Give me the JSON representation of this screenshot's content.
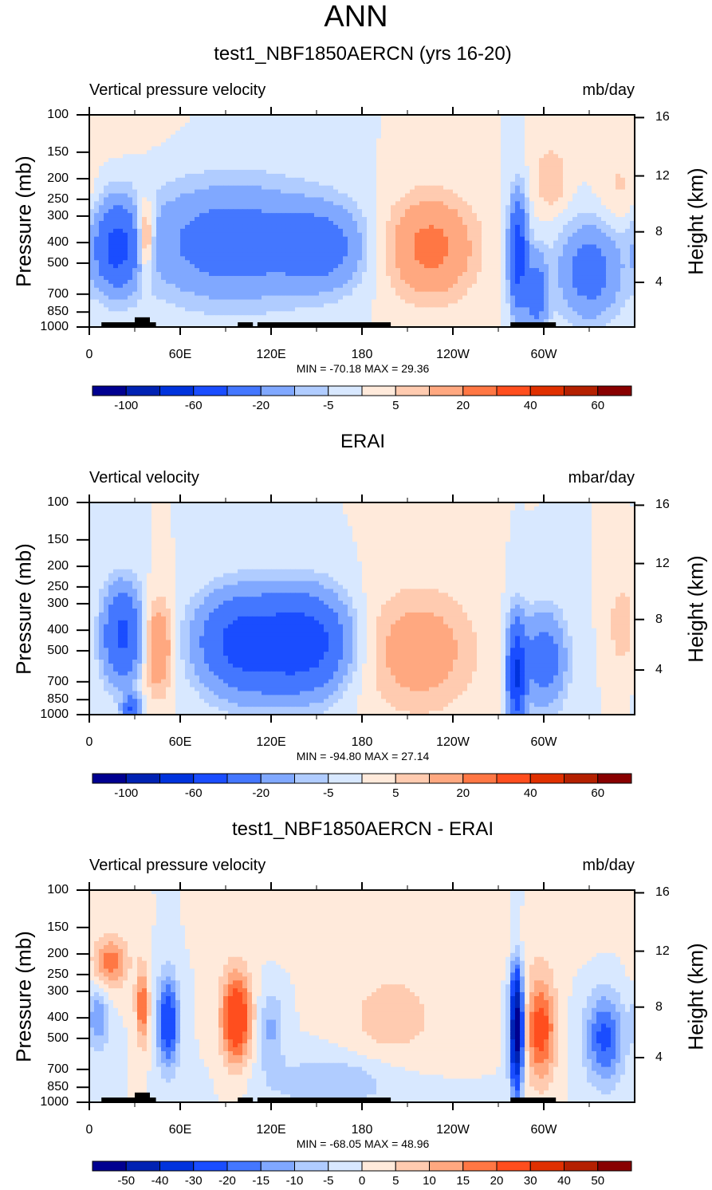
{
  "main_title": "ANN",
  "chart_data": [
    {
      "type": "heatmap",
      "title": "test1_NBF1850AERCN (yrs 16-20)",
      "left_string": "Vertical pressure velocity",
      "right_string": "mb/day",
      "xlabel": "",
      "ylabel": "Pressure (mb)",
      "ylabel_right": "Height (km)",
      "x_ticks": [
        "0",
        "60E",
        "120E",
        "180",
        "120W",
        "60W"
      ],
      "x_tick_values": [
        0,
        60,
        120,
        180,
        240,
        300
      ],
      "xlim": [
        0,
        360
      ],
      "y_ticks": [
        "100",
        "150",
        "200",
        "250",
        "300",
        "400",
        "500",
        "700",
        "850",
        "1000"
      ],
      "y_tick_values": [
        100,
        150,
        200,
        250,
        300,
        400,
        500,
        700,
        850,
        1000
      ],
      "ylim": [
        1000,
        100
      ],
      "y_scale": "log",
      "right_ticks": [
        "16",
        "12",
        "8",
        "4"
      ],
      "minmax_text": "MIN = -70.18  MAX =  29.36",
      "levels": [
        -100,
        -80,
        -60,
        -40,
        -20,
        -10,
        -5,
        0,
        5,
        10,
        20,
        30,
        40,
        50,
        60
      ],
      "colorbar_labels": [
        "-100",
        "-60",
        "-20",
        "-5",
        "5",
        "20",
        "40",
        "60"
      ],
      "colorbar_label_every": 2,
      "features": [
        {
          "lon": 18,
          "p": 420,
          "dlon": 10,
          "dlogp": 0.32,
          "amp": -45
        },
        {
          "lon": 37,
          "p": 380,
          "dlon": 4,
          "dlogp": 0.28,
          "amp": 26
        },
        {
          "lon": 95,
          "p": 400,
          "dlon": 40,
          "dlogp": 0.42,
          "amp": -30
        },
        {
          "lon": 155,
          "p": 420,
          "dlon": 18,
          "dlogp": 0.3,
          "amp": -22
        },
        {
          "lon": 225,
          "p": 420,
          "dlon": 20,
          "dlogp": 0.38,
          "amp": 24
        },
        {
          "lon": 283,
          "p": 450,
          "dlon": 4,
          "dlogp": 0.4,
          "amp": -55
        },
        {
          "lon": 295,
          "p": 700,
          "dlon": 5,
          "dlogp": 0.3,
          "amp": -30
        },
        {
          "lon": 330,
          "p": 550,
          "dlon": 14,
          "dlogp": 0.35,
          "amp": -28
        },
        {
          "lon": 305,
          "p": 200,
          "dlon": 8,
          "dlogp": 0.25,
          "amp": 10
        },
        {
          "lon": 350,
          "p": 220,
          "dlon": 10,
          "dlogp": 0.3,
          "amp": 6
        },
        {
          "lon": 15,
          "p": 110,
          "dlon": 20,
          "dlogp": 0.2,
          "amp": 4
        }
      ],
      "land_spans": [
        [
          8,
          36,
          1000,
          950
        ],
        [
          30,
          40,
          1000,
          900
        ],
        [
          36,
          44,
          1000,
          950
        ],
        [
          98,
          108,
          1000,
          950
        ],
        [
          111,
          199,
          1000,
          950
        ],
        [
          278,
          308,
          1000,
          950
        ]
      ]
    },
    {
      "type": "heatmap",
      "title": "ERAI",
      "left_string": "Vertical velocity",
      "right_string": "mbar/day",
      "xlabel": "",
      "ylabel": "Pressure (mb)",
      "ylabel_right": "Height (km)",
      "x_ticks": [
        "0",
        "60E",
        "120E",
        "180",
        "120W",
        "60W"
      ],
      "x_tick_values": [
        0,
        60,
        120,
        180,
        240,
        300
      ],
      "xlim": [
        0,
        360
      ],
      "y_ticks": [
        "100",
        "150",
        "200",
        "250",
        "300",
        "400",
        "500",
        "700",
        "850",
        "1000"
      ],
      "y_tick_values": [
        100,
        150,
        200,
        250,
        300,
        400,
        500,
        700,
        850,
        1000
      ],
      "ylim": [
        1000,
        100
      ],
      "y_scale": "log",
      "right_ticks": [
        "16",
        "12",
        "8",
        "4"
      ],
      "minmax_text": "MIN = -94.80  MAX =  27.14",
      "levels": [
        -100,
        -80,
        -60,
        -40,
        -20,
        -10,
        -5,
        0,
        5,
        10,
        20,
        30,
        40,
        50,
        60
      ],
      "colorbar_labels": [
        "-100",
        "-60",
        "-20",
        "-5",
        "5",
        "20",
        "40",
        "60"
      ],
      "colorbar_label_every": 2,
      "features": [
        {
          "lon": 22,
          "p": 420,
          "dlon": 9,
          "dlogp": 0.35,
          "amp": -45
        },
        {
          "lon": 45,
          "p": 480,
          "dlon": 7,
          "dlogp": 0.35,
          "amp": 22
        },
        {
          "lon": 100,
          "p": 450,
          "dlon": 20,
          "dlogp": 0.35,
          "amp": -40
        },
        {
          "lon": 145,
          "p": 450,
          "dlon": 18,
          "dlogp": 0.35,
          "amp": -42
        },
        {
          "lon": 122,
          "p": 500,
          "dlon": 25,
          "dlogp": 0.4,
          "amp": -18
        },
        {
          "lon": 218,
          "p": 500,
          "dlon": 25,
          "dlogp": 0.45,
          "amp": 16
        },
        {
          "lon": 282,
          "p": 650,
          "dlon": 4,
          "dlogp": 0.4,
          "amp": -60
        },
        {
          "lon": 300,
          "p": 550,
          "dlon": 10,
          "dlogp": 0.35,
          "amp": -30
        },
        {
          "lon": 352,
          "p": 380,
          "dlon": 6,
          "dlogp": 0.3,
          "amp": 10
        },
        {
          "lon": 28,
          "p": 950,
          "dlon": 4,
          "dlogp": 0.1,
          "amp": -40
        }
      ],
      "land_spans": []
    },
    {
      "type": "heatmap",
      "title": "test1_NBF1850AERCN - ERAI",
      "left_string": "Vertical pressure velocity",
      "right_string": "mb/day",
      "xlabel": "",
      "ylabel": "Pressure (mb)",
      "ylabel_right": "Height (km)",
      "x_ticks": [
        "0",
        "60E",
        "120E",
        "180",
        "120W",
        "60W"
      ],
      "x_tick_values": [
        0,
        60,
        120,
        180,
        240,
        300
      ],
      "xlim": [
        0,
        360
      ],
      "y_ticks": [
        "100",
        "150",
        "200",
        "250",
        "300",
        "400",
        "500",
        "700",
        "850",
        "1000"
      ],
      "y_tick_values": [
        100,
        150,
        200,
        250,
        300,
        400,
        500,
        700,
        850,
        1000
      ],
      "ylim": [
        1000,
        100
      ],
      "y_scale": "log",
      "right_ticks": [
        "16",
        "12",
        "8",
        "4"
      ],
      "minmax_text": "MIN = -68.05  MAX =  48.96",
      "levels": [
        -50,
        -40,
        -30,
        -20,
        -15,
        -10,
        -5,
        0,
        5,
        10,
        15,
        20,
        30,
        40,
        50
      ],
      "colorbar_labels": [
        "-50",
        "-40",
        "-30",
        "-20",
        "-15",
        "-10",
        "-5",
        "0",
        "5",
        "10",
        "15",
        "20",
        "30",
        "40",
        "50"
      ],
      "colorbar_label_every": 1,
      "features": [
        {
          "lon": 14,
          "p": 220,
          "dlon": 8,
          "dlogp": 0.2,
          "amp": 18
        },
        {
          "lon": 6,
          "p": 400,
          "dlon": 5,
          "dlogp": 0.25,
          "amp": -14
        },
        {
          "lon": 35,
          "p": 350,
          "dlon": 3,
          "dlogp": 0.3,
          "amp": 20
        },
        {
          "lon": 52,
          "p": 420,
          "dlon": 5,
          "dlogp": 0.35,
          "amp": -28
        },
        {
          "lon": 97,
          "p": 400,
          "dlon": 7,
          "dlogp": 0.35,
          "amp": 30
        },
        {
          "lon": 120,
          "p": 450,
          "dlon": 6,
          "dlogp": 0.3,
          "amp": -11
        },
        {
          "lon": 200,
          "p": 400,
          "dlon": 22,
          "dlogp": 0.35,
          "amp": 8
        },
        {
          "lon": 282,
          "p": 450,
          "dlon": 3,
          "dlogp": 0.45,
          "amp": -60
        },
        {
          "lon": 298,
          "p": 450,
          "dlon": 7,
          "dlogp": 0.4,
          "amp": 24
        },
        {
          "lon": 340,
          "p": 500,
          "dlon": 9,
          "dlogp": 0.35,
          "amp": -22
        },
        {
          "lon": 160,
          "p": 800,
          "dlon": 30,
          "dlogp": 0.2,
          "amp": -10
        },
        {
          "lon": 230,
          "p": 180,
          "dlon": 60,
          "dlogp": 0.2,
          "amp": 4
        }
      ],
      "land_spans": [
        [
          8,
          36,
          1000,
          950
        ],
        [
          30,
          40,
          1000,
          900
        ],
        [
          36,
          44,
          1000,
          950
        ],
        [
          98,
          108,
          1000,
          950
        ],
        [
          111,
          199,
          1000,
          950
        ],
        [
          278,
          308,
          1000,
          950
        ]
      ]
    }
  ],
  "colors": {
    "palette": [
      "#000090",
      "#0022b3",
      "#0033dd",
      "#1a4dff",
      "#4477ff",
      "#80a8ff",
      "#b0ccff",
      "#d8e8ff",
      "#ffeadb",
      "#ffcbb0",
      "#ffa880",
      "#ff7744",
      "#ff4e1e",
      "#e03000",
      "#b42000",
      "#880000"
    ],
    "land": "#000000"
  }
}
